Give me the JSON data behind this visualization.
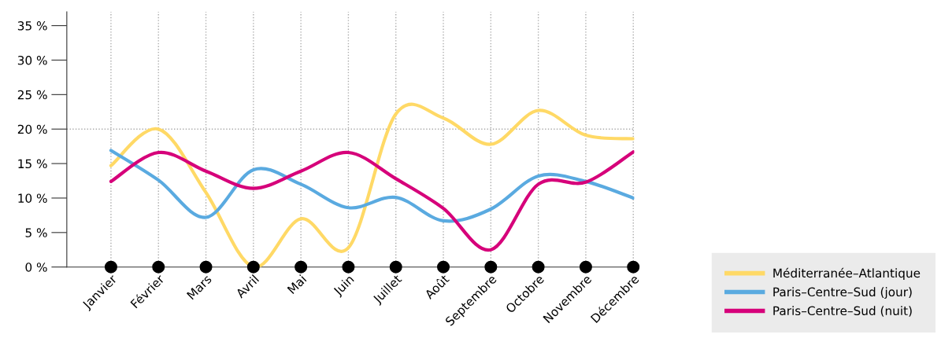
{
  "chart_data": {
    "type": "line",
    "categories": [
      "Janvier",
      "Février",
      "Mars",
      "Avril",
      "Mai",
      "Juin",
      "Juillet",
      "Août",
      "Septembre",
      "Octobre",
      "Novembre",
      "Décembre"
    ],
    "series": [
      {
        "name": "Méditerranée–Atlantique",
        "color": "#ffd966",
        "values": [
          14.7,
          20,
          10.8,
          0,
          7,
          2.8,
          22.2,
          21.6,
          17.8,
          22.7,
          19.1,
          18.6
        ]
      },
      {
        "name": "Paris–Centre–Sud (jour)",
        "color": "#5aaae0",
        "values": [
          16.9,
          12.6,
          7.2,
          14.1,
          12,
          8.6,
          10.1,
          6.7,
          8.4,
          13.2,
          12.4,
          10
        ]
      },
      {
        "name": "Paris–Centre–Sud (nuit)",
        "color": "#d6007a",
        "values": [
          12.4,
          16.6,
          13.9,
          11.4,
          13.9,
          16.6,
          12.8,
          8.5,
          2.5,
          12,
          12.3,
          16.7
        ]
      },
      {
        "type": "scatter",
        "marker": "circle",
        "color": "#000000",
        "values": [
          0,
          0,
          0,
          0,
          0,
          0,
          0,
          0,
          0,
          0,
          0,
          0
        ]
      }
    ],
    "ylim": [
      0,
      37
    ],
    "yticks": [
      {
        "value": 0,
        "label": "0 %"
      },
      {
        "value": 5,
        "label": "5 %"
      },
      {
        "value": 10,
        "label": "10 %"
      },
      {
        "value": 15,
        "label": "15 %"
      },
      {
        "value": 20,
        "label": "20 %"
      },
      {
        "value": 25,
        "label": "25 %"
      },
      {
        "value": 30,
        "label": "30 %"
      },
      {
        "value": 35,
        "label": "35 %"
      }
    ],
    "ref_lines": [
      {
        "axis": "y",
        "value": 20,
        "color": "#aaaaaa",
        "line_style": "dotted"
      }
    ],
    "grid": "x",
    "legend": "bottom right",
    "marker": "none",
    "line_style": "solid"
  }
}
